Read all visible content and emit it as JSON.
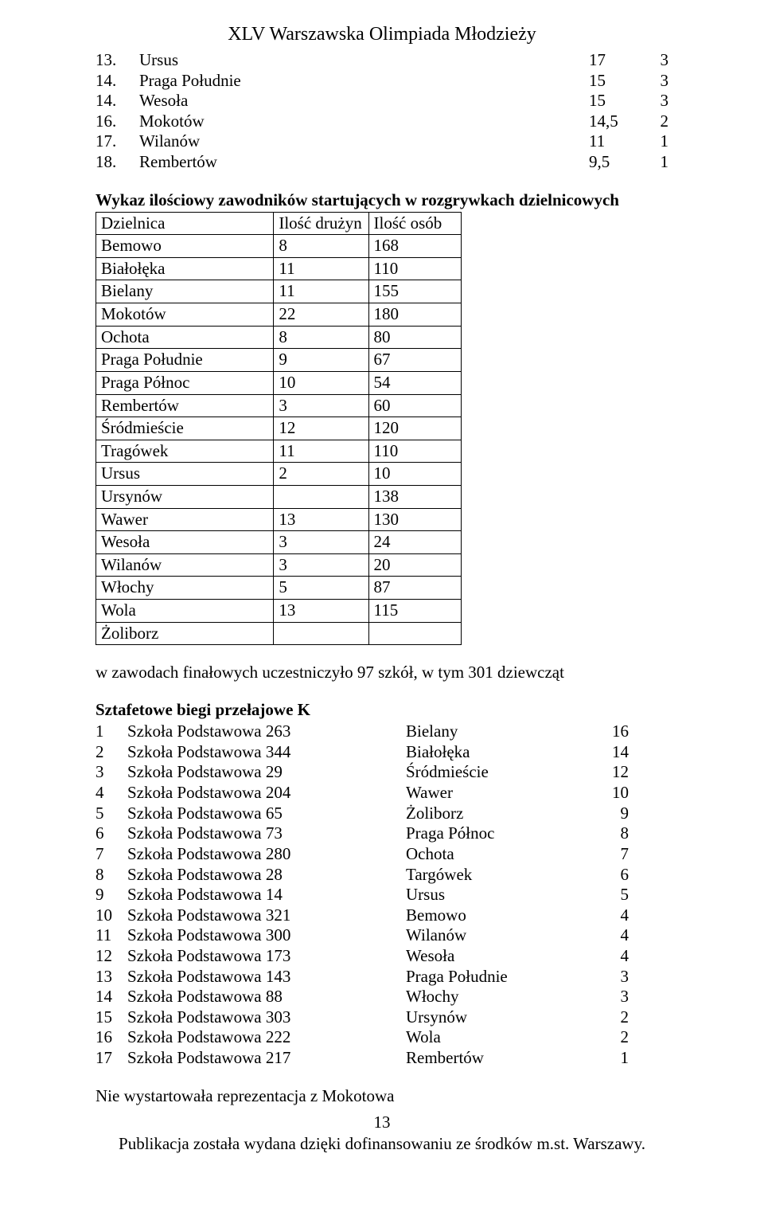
{
  "doc_title": "XLV Warszawska Olimpiada Młodzieży",
  "ranking": [
    {
      "n": "13.",
      "name": "Ursus",
      "v1": "17",
      "v2": "3"
    },
    {
      "n": "14.",
      "name": "Praga Południe",
      "v1": "15",
      "v2": "3"
    },
    {
      "n": "14.",
      "name": "Wesoła",
      "v1": "15",
      "v2": "3"
    },
    {
      "n": "16.",
      "name": "Mokotów",
      "v1": "14,5",
      "v2": "2"
    },
    {
      "n": "17.",
      "name": "Wilanów",
      "v1": "11",
      "v2": "1"
    },
    {
      "n": "18.",
      "name": "Rembertów",
      "v1": "9,5",
      "v2": "1"
    }
  ],
  "table": {
    "heading": "Wykaz ilościowy zawodników startujących w rozgrywkach dzielnicowych",
    "col_headers": [
      "Dzielnica",
      "Ilość drużyn",
      "Ilość osób"
    ],
    "rows": [
      [
        "Bemowo",
        "8",
        "168"
      ],
      [
        "Białołęka",
        "11",
        "110"
      ],
      [
        "Bielany",
        "11",
        "155"
      ],
      [
        "Mokotów",
        "22",
        "180"
      ],
      [
        "Ochota",
        "8",
        "80"
      ],
      [
        "Praga Południe",
        "9",
        "67"
      ],
      [
        "Praga Północ",
        "10",
        "54"
      ],
      [
        "Rembertów",
        "3",
        "60"
      ],
      [
        "Śródmieście",
        "12",
        "120"
      ],
      [
        "Tragówek",
        "11",
        "110"
      ],
      [
        "Ursus",
        "2",
        "10"
      ],
      [
        "Ursynów",
        "",
        "138"
      ],
      [
        "Wawer",
        "13",
        "130"
      ],
      [
        "Wesoła",
        "3",
        "24"
      ],
      [
        "Wilanów",
        "3",
        "20"
      ],
      [
        "Włochy",
        "5",
        "87"
      ],
      [
        "Wola",
        "13",
        "115"
      ],
      [
        "Żoliborz",
        "",
        ""
      ]
    ]
  },
  "para_text": "w zawodach finałowych uczestniczyło 97 szkół, w tym 301 dziewcząt",
  "relay": {
    "heading": "Sztafetowe biegi przełajowe K",
    "rows": [
      {
        "n": "1",
        "school": "Szkoła Podstawowa 263",
        "district": "Bielany",
        "pts": "16"
      },
      {
        "n": "2",
        "school": "Szkoła Podstawowa 344",
        "district": "Białołęka",
        "pts": "14"
      },
      {
        "n": "3",
        "school": "Szkoła Podstawowa 29",
        "district": "Śródmieście",
        "pts": "12"
      },
      {
        "n": "4",
        "school": "Szkoła Podstawowa 204",
        "district": "Wawer",
        "pts": "10"
      },
      {
        "n": "5",
        "school": "Szkoła Podstawowa 65",
        "district": "Żoliborz",
        "pts": "9"
      },
      {
        "n": "6",
        "school": "Szkoła Podstawowa 73",
        "district": "Praga Północ",
        "pts": "8"
      },
      {
        "n": "7",
        "school": "Szkoła Podstawowa 280",
        "district": "Ochota",
        "pts": "7"
      },
      {
        "n": "8",
        "school": "Szkoła Podstawowa 28",
        "district": "Targówek",
        "pts": "6"
      },
      {
        "n": "9",
        "school": "Szkoła Podstawowa 14",
        "district": "Ursus",
        "pts": "5"
      },
      {
        "n": "10",
        "school": "Szkoła Podstawowa 321",
        "district": "Bemowo",
        "pts": "4"
      },
      {
        "n": "11",
        "school": "Szkoła Podstawowa 300",
        "district": "Wilanów",
        "pts": "4"
      },
      {
        "n": "12",
        "school": "Szkoła Podstawowa 173",
        "district": "Wesoła",
        "pts": "4"
      },
      {
        "n": "13",
        "school": "Szkoła Podstawowa 143",
        "district": "Praga Południe",
        "pts": "3"
      },
      {
        "n": "14",
        "school": "Szkoła Podstawowa 88",
        "district": "Włochy",
        "pts": "3"
      },
      {
        "n": "15",
        "school": "Szkoła Podstawowa 303",
        "district": "Ursynów",
        "pts": "2"
      },
      {
        "n": "16",
        "school": "Szkoła Podstawowa 222",
        "district": "Wola",
        "pts": "2"
      },
      {
        "n": "17",
        "school": "Szkoła Podstawowa 217",
        "district": "Rembertów",
        "pts": "1"
      }
    ]
  },
  "note_text": "Nie wystartowała reprezentacja z Mokotowa",
  "page_number": "13",
  "footer_text": "Publikacja została wydana dzięki dofinansowaniu ze środków m.st. Warszawy."
}
